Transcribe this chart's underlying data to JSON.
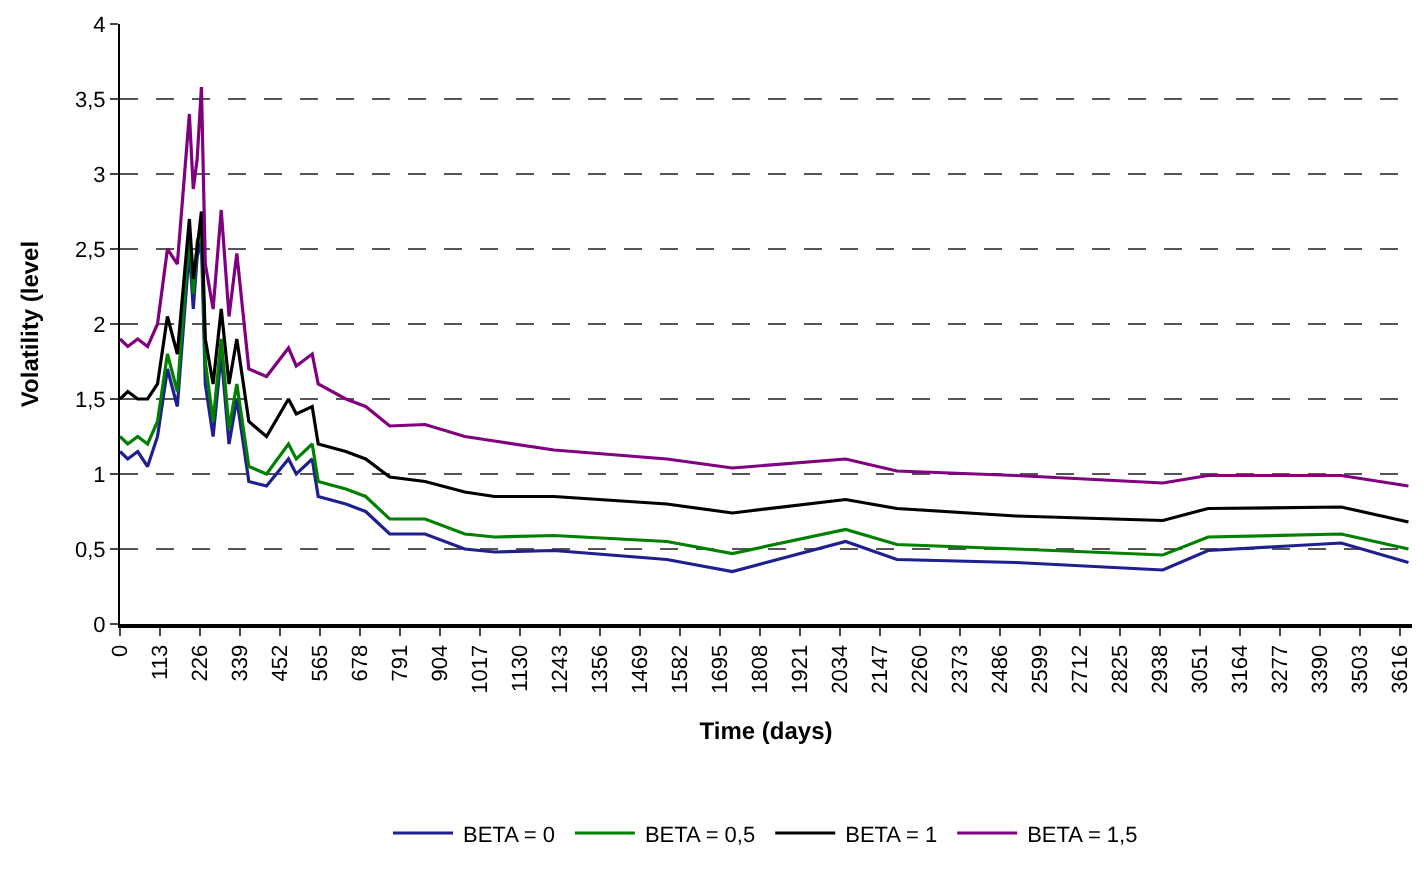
{
  "chart_data": {
    "type": "line",
    "xlabel": "Time (days)",
    "ylabel": "Volatility (level",
    "x": [
      0,
      22,
      50,
      78,
      106,
      134,
      162,
      196,
      207,
      218,
      230,
      241,
      263,
      286,
      308,
      330,
      364,
      414,
      476,
      498,
      543,
      560,
      638,
      694,
      762,
      862,
      974,
      1058,
      1226,
      1545,
      1730,
      2050,
      2195,
      2530,
      2946,
      3074,
      3450,
      3640
    ],
    "series": [
      {
        "name": "BETA = 0",
        "color": "#1f1f8f",
        "values": [
          1.15,
          1.1,
          1.15,
          1.05,
          1.25,
          1.7,
          1.45,
          2.5,
          2.1,
          2.45,
          2.55,
          1.6,
          1.25,
          1.8,
          1.2,
          1.5,
          0.95,
          0.92,
          1.1,
          1.0,
          1.1,
          0.85,
          0.8,
          0.75,
          0.6,
          0.6,
          0.5,
          0.48,
          0.49,
          0.43,
          0.35,
          0.55,
          0.43,
          0.41,
          0.36,
          0.49,
          0.54,
          0.41
        ]
      },
      {
        "name": "BETA = 0,5",
        "color": "#008000",
        "values": [
          1.25,
          1.2,
          1.25,
          1.2,
          1.35,
          1.8,
          1.55,
          2.6,
          2.2,
          2.55,
          2.65,
          1.75,
          1.35,
          1.9,
          1.3,
          1.6,
          1.05,
          1.0,
          1.2,
          1.1,
          1.2,
          0.95,
          0.9,
          0.85,
          0.7,
          0.7,
          0.6,
          0.58,
          0.59,
          0.55,
          0.47,
          0.63,
          0.53,
          0.5,
          0.46,
          0.58,
          0.6,
          0.5
        ]
      },
      {
        "name": "BETA = 1",
        "color": "#000000",
        "values": [
          1.5,
          1.55,
          1.5,
          1.5,
          1.6,
          2.05,
          1.8,
          2.7,
          2.3,
          2.5,
          2.75,
          1.9,
          1.6,
          2.1,
          1.6,
          1.9,
          1.35,
          1.25,
          1.5,
          1.4,
          1.45,
          1.2,
          1.15,
          1.1,
          0.98,
          0.95,
          0.88,
          0.85,
          0.85,
          0.8,
          0.74,
          0.83,
          0.77,
          0.72,
          0.69,
          0.77,
          0.78,
          0.68
        ]
      },
      {
        "name": "BETA = 1,5",
        "color": "#800080",
        "values": [
          1.9,
          1.85,
          1.9,
          1.85,
          2.0,
          2.5,
          2.4,
          3.4,
          2.9,
          3.1,
          3.58,
          2.4,
          2.1,
          2.76,
          2.05,
          2.47,
          1.7,
          1.65,
          1.84,
          1.72,
          1.8,
          1.6,
          1.5,
          1.45,
          1.32,
          1.33,
          1.25,
          1.22,
          1.16,
          1.1,
          1.04,
          1.1,
          1.02,
          0.99,
          0.94,
          0.99,
          0.99,
          0.92
        ]
      }
    ],
    "xlim": [
      0,
      3650
    ],
    "xticks": [
      0,
      113,
      226,
      339,
      452,
      565,
      678,
      791,
      904,
      1017,
      1130,
      1243,
      1356,
      1469,
      1582,
      1695,
      1808,
      1921,
      2034,
      2147,
      2260,
      2373,
      2486,
      2599,
      2712,
      2825,
      2938,
      3051,
      3164,
      3277,
      3390,
      3503,
      3616
    ],
    "ylim": [
      0,
      4
    ],
    "yticks": [
      0,
      {
        "value": 0.5,
        "label": "0,5"
      },
      1,
      {
        "value": 1.5,
        "label": "1,5"
      },
      2,
      {
        "value": 2.5,
        "label": "2,5"
      },
      3,
      {
        "value": 3.5,
        "label": "3,5"
      },
      4
    ],
    "grid": "y",
    "legend": "bottom",
    "marker": "none",
    "line_style": "solid"
  }
}
